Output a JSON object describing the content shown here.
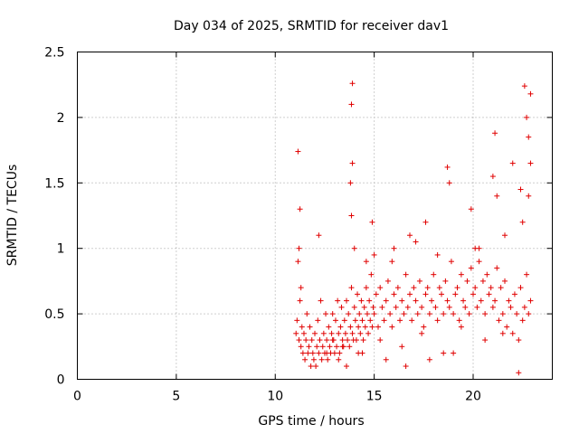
{
  "chart_data": {
    "type": "scatter",
    "title": "Day 034 of 2025, SRMTID for receiver dav1",
    "xlabel": "GPS time / hours",
    "ylabel": "SRMTID / TECUs",
    "xlim": [
      0,
      24
    ],
    "ylim": [
      0,
      2.5
    ],
    "xticks": [
      0,
      5,
      10,
      15,
      20
    ],
    "xtick_labels": [
      "0",
      "5",
      "10",
      "15",
      "20"
    ],
    "yticks": [
      0,
      0.5,
      1,
      1.5,
      2,
      2.5
    ],
    "ytick_labels": [
      "0",
      "0.5",
      "1",
      "1.5",
      "2",
      "2.5"
    ],
    "grid": true,
    "marker": "+",
    "series": [
      {
        "name": "SRMTID",
        "color": "#e00000",
        "x": [
          11.05,
          11.1,
          11.2,
          11.15,
          11.25,
          11.3,
          11.2,
          11.35,
          11.4,
          11.3,
          11.45,
          11.5,
          11.55,
          11.6,
          11.65,
          11.7,
          11.75,
          11.8,
          11.85,
          11.9,
          11.95,
          12.0,
          12.05,
          12.1,
          12.15,
          12.2,
          12.25,
          12.3,
          12.35,
          12.4,
          12.45,
          12.5,
          12.55,
          12.6,
          12.65,
          12.7,
          12.75,
          12.8,
          12.85,
          12.9,
          12.95,
          13.0,
          13.05,
          13.1,
          13.15,
          13.2,
          13.25,
          13.3,
          13.35,
          13.4,
          13.45,
          13.5,
          13.55,
          13.6,
          13.65,
          13.7,
          13.75,
          13.8,
          13.85,
          13.9,
          13.95,
          14.0,
          14.05,
          14.1,
          14.15,
          14.2,
          14.25,
          14.3,
          14.35,
          14.4,
          14.45,
          14.5,
          14.55,
          14.6,
          14.65,
          14.7,
          14.75,
          14.8,
          14.85,
          14.9,
          14.95,
          15.0,
          15.1,
          15.2,
          15.3,
          15.4,
          15.5,
          15.6,
          15.7,
          15.8,
          15.9,
          16.0,
          16.1,
          16.2,
          16.3,
          16.4,
          16.5,
          16.6,
          16.7,
          16.8,
          16.9,
          17.0,
          17.1,
          17.2,
          17.3,
          17.4,
          17.5,
          17.6,
          17.7,
          17.8,
          17.9,
          18.0,
          18.1,
          18.2,
          18.3,
          18.4,
          18.5,
          18.6,
          18.7,
          18.8,
          18.9,
          19.0,
          19.1,
          19.2,
          19.3,
          19.4,
          19.5,
          19.6,
          19.7,
          19.8,
          19.9,
          20.0,
          20.1,
          20.2,
          20.3,
          20.4,
          20.5,
          20.6,
          20.7,
          20.8,
          20.9,
          21.0,
          21.1,
          21.2,
          21.3,
          21.4,
          21.5,
          21.6,
          21.7,
          21.8,
          21.9,
          22.0,
          22.1,
          22.2,
          22.3,
          22.4,
          22.5,
          22.6,
          22.7,
          22.8,
          22.9,
          11.15,
          11.25,
          12.2,
          13.9,
          13.85,
          13.9,
          13.8,
          13.85,
          14.0,
          14.9,
          15.0,
          16.0,
          16.8,
          17.6,
          18.7,
          18.8,
          19.9,
          20.1,
          21.0,
          21.1,
          21.2,
          22.0,
          22.4,
          22.6,
          22.7,
          22.8,
          22.9,
          22.9,
          22.8,
          22.5,
          21.6,
          20.3,
          18.2,
          17.1,
          15.9,
          14.6,
          13.2,
          12.6,
          12.9,
          13.4,
          14.2,
          15.3,
          16.4,
          17.4,
          18.5,
          19.4,
          20.6,
          21.5,
          22.3,
          19.0,
          17.8,
          16.6,
          15.6,
          14.4,
          13.6
        ],
        "y": [
          0.35,
          0.45,
          0.3,
          0.9,
          0.6,
          0.25,
          1.0,
          0.4,
          0.2,
          0.7,
          0.35,
          0.15,
          0.3,
          0.5,
          0.2,
          0.25,
          0.4,
          0.1,
          0.3,
          0.2,
          0.15,
          0.35,
          0.1,
          0.25,
          0.45,
          0.2,
          0.3,
          0.6,
          0.15,
          0.25,
          0.35,
          0.2,
          0.5,
          0.3,
          0.15,
          0.4,
          0.25,
          0.2,
          0.35,
          0.5,
          0.3,
          0.2,
          0.45,
          0.25,
          0.6,
          0.35,
          0.2,
          0.4,
          0.55,
          0.3,
          0.25,
          0.45,
          0.35,
          0.6,
          0.3,
          0.5,
          0.25,
          0.4,
          0.7,
          0.35,
          0.3,
          0.55,
          0.45,
          0.3,
          0.65,
          0.4,
          0.5,
          0.35,
          0.6,
          0.45,
          0.3,
          0.55,
          0.4,
          0.7,
          0.5,
          0.35,
          0.6,
          0.45,
          0.8,
          0.4,
          0.55,
          0.5,
          0.65,
          0.4,
          0.7,
          0.55,
          0.45,
          0.6,
          0.75,
          0.5,
          0.4,
          0.65,
          0.55,
          0.7,
          0.45,
          0.6,
          0.5,
          0.8,
          0.55,
          0.65,
          0.45,
          0.7,
          0.6,
          0.5,
          0.75,
          0.55,
          0.4,
          0.65,
          0.7,
          0.5,
          0.6,
          0.8,
          0.55,
          0.45,
          0.7,
          0.65,
          0.5,
          0.75,
          0.6,
          0.55,
          0.9,
          0.5,
          0.65,
          0.7,
          0.45,
          0.8,
          0.6,
          0.55,
          0.75,
          0.5,
          0.85,
          0.65,
          0.7,
          0.55,
          0.9,
          0.6,
          0.75,
          0.5,
          0.8,
          0.65,
          0.7,
          0.55,
          0.6,
          0.85,
          0.45,
          0.7,
          0.5,
          0.75,
          0.4,
          0.6,
          0.55,
          0.35,
          0.65,
          0.5,
          0.3,
          0.7,
          0.45,
          0.55,
          0.8,
          0.5,
          0.6,
          1.74,
          1.3,
          1.1,
          2.26,
          2.1,
          1.65,
          1.5,
          1.25,
          1.0,
          1.2,
          0.95,
          1.0,
          1.1,
          1.2,
          1.62,
          1.5,
          1.3,
          1.0,
          1.55,
          1.88,
          1.4,
          1.65,
          1.45,
          2.24,
          2.0,
          1.85,
          2.18,
          1.65,
          1.4,
          1.2,
          1.1,
          1.0,
          0.95,
          1.05,
          0.9,
          0.9,
          0.15,
          0.2,
          0.3,
          0.25,
          0.2,
          0.3,
          0.25,
          0.35,
          0.2,
          0.4,
          0.3,
          0.35,
          0.05,
          0.2,
          0.15,
          0.1,
          0.15,
          0.2,
          0.1
        ]
      }
    ]
  }
}
